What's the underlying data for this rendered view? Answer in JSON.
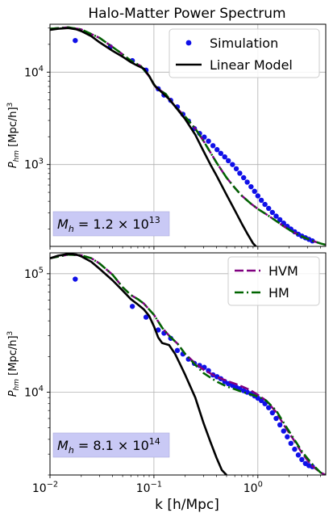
{
  "chart_data": {
    "title": "Halo-Matter Power Spectrum",
    "xlabel": "k [h/Mpc]",
    "x_scale": "log",
    "y_scale": "log",
    "xlim": [
      0.01,
      4.5
    ],
    "x_ticks": [
      {
        "value": 0.01,
        "base": "10",
        "exp": "−2"
      },
      {
        "value": 0.1,
        "base": "10",
        "exp": "−1"
      },
      {
        "value": 1,
        "base": "10",
        "exp": "0"
      }
    ],
    "grid": true,
    "colors": {
      "simulation": "#1010e8",
      "linear": "#000000",
      "hvm": "#800080",
      "hm": "#006400",
      "annotation_box": "#c9c9f5"
    },
    "panels": [
      {
        "type": "line",
        "ylabel_main": "P",
        "ylabel_sub": "hm",
        "ylabel_unit": "[Mpc/h]",
        "ylabel_unit_exp": "3",
        "ylim": [
          130,
          33000
        ],
        "y_ticks": [
          {
            "value": 1000,
            "base": "10",
            "exp": "3"
          },
          {
            "value": 10000,
            "base": "10",
            "exp": "4"
          }
        ],
        "annotation": {
          "lhs": "M",
          "lhs_sub": "h",
          "text": " = 1.2 × 10",
          "exp": "13"
        },
        "legend": {
          "placement": "top-right",
          "entries": [
            {
              "label": "Simulation",
              "style": "dot",
              "color_key": "simulation"
            },
            {
              "label": "Linear Model",
              "style": "solid",
              "color_key": "linear"
            }
          ]
        },
        "series": [
          {
            "name": "Simulation",
            "kind": "scatter",
            "color_key": "simulation",
            "x": [
              0.0175,
              0.038,
              0.062,
              0.084,
              0.11,
              0.125,
              0.145,
              0.168,
              0.19,
              0.215,
              0.245,
              0.275,
              0.305,
              0.335,
              0.37,
              0.405,
              0.44,
              0.48,
              0.52,
              0.57,
              0.62,
              0.67,
              0.73,
              0.79,
              0.86,
              0.93,
              1.0,
              1.08,
              1.17,
              1.27,
              1.38,
              1.5,
              1.63,
              1.77,
              1.92,
              2.08,
              2.26,
              2.45,
              2.65,
              2.87,
              3.1,
              3.35
            ],
            "y": [
              22000,
              18800,
              13300,
              10500,
              6600,
              5650,
              4950,
              4200,
              3500,
              2950,
              2450,
              2170,
              1980,
              1790,
              1600,
              1450,
              1320,
              1210,
              1100,
              1000,
              900,
              805,
              720,
              645,
              575,
              513,
              458,
              410,
              370,
              335,
              303,
              276,
              253,
              232,
              214,
              200,
              187,
              176,
              168,
              161,
              155,
              149
            ]
          },
          {
            "name": "HVM",
            "kind": "dashed",
            "color_key": "hvm",
            "x": [
              0.01,
              0.015,
              0.02,
              0.03,
              0.045,
              0.06,
              0.075,
              0.09,
              0.105,
              0.13,
              0.16,
              0.2,
              0.25,
              0.3,
              0.35,
              0.4,
              0.5,
              0.6,
              0.7,
              0.85,
              1.0,
              1.2,
              1.5,
              1.8,
              2.2,
              2.7,
              3.3,
              4.0,
              4.5
            ],
            "y": [
              29500,
              30500,
              29000,
              23500,
              17000,
              13300,
              11600,
              9000,
              6800,
              5800,
              4250,
              3300,
              2450,
              1800,
              1350,
              1050,
              720,
              560,
              460,
              380,
              330,
              290,
              245,
              212,
              185,
              165,
              150,
              140,
              135
            ]
          },
          {
            "name": "HM",
            "kind": "dashdot",
            "color_key": "hm",
            "x": [
              0.01,
              0.015,
              0.02,
              0.03,
              0.045,
              0.06,
              0.075,
              0.09,
              0.105,
              0.13,
              0.16,
              0.2,
              0.25,
              0.3,
              0.35,
              0.4,
              0.5,
              0.6,
              0.7,
              0.85,
              1.0,
              1.2,
              1.5,
              1.8,
              2.2,
              2.7,
              3.3,
              4.0,
              4.5
            ],
            "y": [
              29500,
              30500,
              29000,
              23500,
              17000,
              13300,
              11600,
              9000,
              6800,
              5800,
              4250,
              3300,
              2450,
              1800,
              1350,
              1050,
              720,
              560,
              460,
              380,
              330,
              290,
              245,
              212,
              185,
              165,
              150,
              140,
              135
            ]
          },
          {
            "name": "Linear Model",
            "kind": "solid",
            "color_key": "linear",
            "x": [
              0.01,
              0.012,
              0.015,
              0.018,
              0.02,
              0.025,
              0.03,
              0.04,
              0.05,
              0.06,
              0.07,
              0.08,
              0.09,
              0.1,
              0.12,
              0.14,
              0.16,
              0.2,
              0.25,
              0.3,
              0.35,
              0.4,
              0.5,
              0.6,
              0.7,
              0.8,
              0.9,
              0.97
            ],
            "y": [
              28700,
              29500,
              30000,
              29000,
              27800,
              24500,
              21000,
              17000,
              14700,
              12800,
              11700,
              10900,
              9100,
              7300,
              6000,
              5100,
              4250,
              3100,
              2100,
              1400,
              1000,
              760,
              470,
              320,
              230,
              175,
              140,
              128
            ]
          }
        ]
      },
      {
        "type": "line",
        "ylabel_main": "P",
        "ylabel_sub": "hm",
        "ylabel_unit": "[Mpc/h]",
        "ylabel_unit_exp": "3",
        "ylim": [
          2000,
          150000
        ],
        "y_ticks": [
          {
            "value": 10000,
            "base": "10",
            "exp": "4"
          },
          {
            "value": 100000,
            "base": "10",
            "exp": "5"
          }
        ],
        "annotation": {
          "lhs": "M",
          "lhs_sub": "h",
          "text": " = 8.1 × 10",
          "exp": "14"
        },
        "legend": {
          "placement": "top-right",
          "entries": [
            {
              "label": "HVM",
              "style": "dashed",
              "color_key": "hvm"
            },
            {
              "label": "HM",
              "style": "dashdot",
              "color_key": "hm"
            }
          ]
        },
        "series": [
          {
            "name": "Simulation",
            "kind": "scatter",
            "color_key": "simulation",
            "x": [
              0.0175,
              0.062,
              0.084,
              0.11,
              0.125,
              0.145,
              0.168,
              0.19,
              0.215,
              0.245,
              0.275,
              0.305,
              0.335,
              0.37,
              0.405,
              0.44,
              0.48,
              0.52,
              0.57,
              0.62,
              0.67,
              0.73,
              0.79,
              0.86,
              0.93,
              1.0,
              1.08,
              1.17,
              1.27,
              1.38,
              1.5,
              1.63,
              1.77,
              1.92,
              2.08,
              2.26,
              2.45,
              2.65,
              2.87,
              3.1,
              3.35
            ],
            "y": [
              90000,
              53000,
              43000,
              33500,
              31500,
              28500,
              22500,
              21000,
              19000,
              17500,
              16800,
              16200,
              15200,
              14000,
              13500,
              13000,
              12300,
              11800,
              11400,
              11000,
              10700,
              10300,
              10000,
              9700,
              9300,
              8900,
              8500,
              8000,
              7400,
              6700,
              6000,
              5300,
              4700,
              4200,
              3700,
              3300,
              2950,
              2700,
              2500,
              2400,
              2350
            ]
          },
          {
            "name": "HVM",
            "kind": "dashed",
            "color_key": "hvm",
            "x": [
              0.01,
              0.015,
              0.02,
              0.025,
              0.03,
              0.04,
              0.05,
              0.06,
              0.07,
              0.08,
              0.1,
              0.12,
              0.14,
              0.17,
              0.2,
              0.25,
              0.3,
              0.4,
              0.5,
              0.6,
              0.7,
              0.85,
              1.0,
              1.2,
              1.5,
              1.8,
              2.2,
              2.7,
              3.3,
              4.0,
              4.5
            ],
            "y": [
              135000,
              145000,
              143000,
              135000,
              122000,
              98000,
              77000,
              66000,
              61000,
              56000,
              45000,
              35000,
              30000,
              25500,
              21000,
              17500,
              15500,
              13500,
              12500,
              11800,
              11200,
              10400,
              9500,
              8500,
              6800,
              5200,
              4000,
              3000,
              2400,
              2100,
              2000
            ]
          },
          {
            "name": "HM",
            "kind": "dashdot",
            "color_key": "hm",
            "x": [
              0.01,
              0.015,
              0.02,
              0.025,
              0.03,
              0.04,
              0.05,
              0.06,
              0.07,
              0.08,
              0.1,
              0.12,
              0.14,
              0.17,
              0.2,
              0.25,
              0.3,
              0.4,
              0.5,
              0.6,
              0.7,
              0.85,
              1.0,
              1.2,
              1.5,
              1.8,
              2.2,
              2.7,
              3.3,
              4.0,
              4.5
            ],
            "y": [
              135000,
              145000,
              143000,
              135000,
              122000,
              98000,
              77000,
              66000,
              61000,
              56000,
              45000,
              35000,
              30000,
              25500,
              21000,
              17000,
              14500,
              12300,
              11200,
              10600,
              10100,
              9600,
              9200,
              8500,
              7000,
              5400,
              4100,
              3100,
              2500,
              2100,
              2000
            ]
          },
          {
            "name": "Linear Model",
            "kind": "solid",
            "color_key": "linear",
            "x": [
              0.01,
              0.012,
              0.015,
              0.018,
              0.02,
              0.025,
              0.03,
              0.04,
              0.05,
              0.06,
              0.07,
              0.08,
              0.09,
              0.1,
              0.11,
              0.12,
              0.14,
              0.16,
              0.18,
              0.2,
              0.25,
              0.3,
              0.35,
              0.4,
              0.45,
              0.5
            ],
            "y": [
              135000,
              142000,
              147000,
              145000,
              140000,
              126000,
              110000,
              88000,
              72000,
              61000,
              55000,
              50000,
              44000,
              36000,
              29000,
              26000,
              25000,
              21000,
              17000,
              14000,
              9000,
              5500,
              3800,
              2800,
              2200,
              2000
            ]
          }
        ]
      }
    ]
  }
}
